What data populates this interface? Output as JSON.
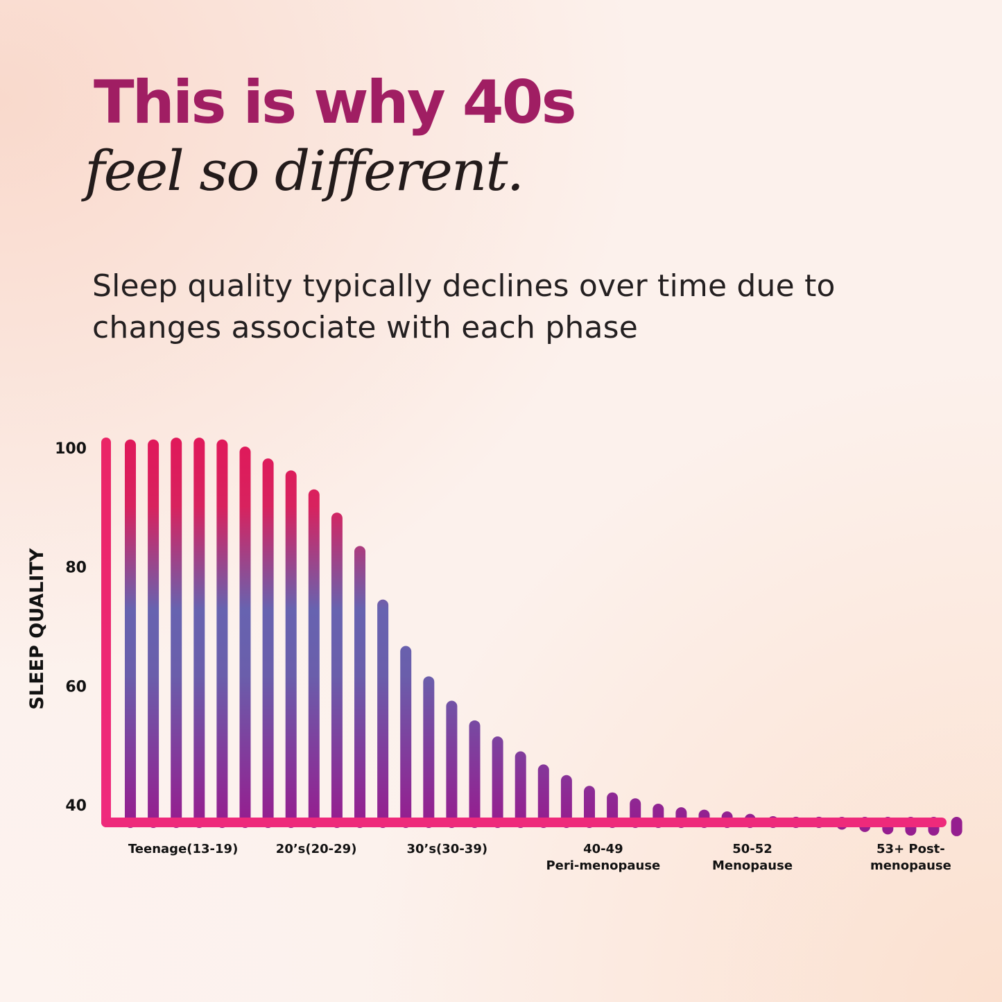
{
  "header": {
    "title": "This is why 40s",
    "subtitle": "feel so different.",
    "description": "Sleep quality typically declines over time due to changes associate with each phase"
  },
  "colors": {
    "title": "#a01e63",
    "bar_top": "#e0185a",
    "bar_mid": "#6763b0",
    "bar_bottom": "#951e8f",
    "axis": "#ee2a7b"
  },
  "chart_data": {
    "type": "bar",
    "ylabel": "SLEEP QUALITY",
    "xlabel": "",
    "ylim": [
      40,
      100
    ],
    "yticks": [
      100,
      80,
      60,
      40
    ],
    "grid": false,
    "legend": "none",
    "category_labels": [
      {
        "lines": [
          "Teenage(13-19)"
        ],
        "at_bar": 2.3
      },
      {
        "lines": [
          "20’s(20-29)"
        ],
        "at_bar": 8.1
      },
      {
        "lines": [
          "30’s(30-39)"
        ],
        "at_bar": 13.8
      },
      {
        "lines": [
          "40-49",
          "Peri-menopause"
        ],
        "at_bar": 20.6
      },
      {
        "lines": [
          "50-52",
          "Menopause"
        ],
        "at_bar": 27.1
      },
      {
        "lines": [
          "53+ Post-",
          "menopause"
        ],
        "at_bar": 34.0
      }
    ],
    "values": [
      100.5,
      100.5,
      100.8,
      100.8,
      100.5,
      99.3,
      97.3,
      95.3,
      92.1,
      88.2,
      82.6,
      73.6,
      65.8,
      60.7,
      56.6,
      53.3,
      50.6,
      48.1,
      45.9,
      44.1,
      42.3,
      41.2,
      40.2,
      39.3,
      38.7,
      38.3,
      38.0,
      37.6,
      37.2,
      37.1,
      37.1,
      36.8,
      36.4,
      36.0,
      35.8,
      35.8,
      35.7
    ]
  }
}
